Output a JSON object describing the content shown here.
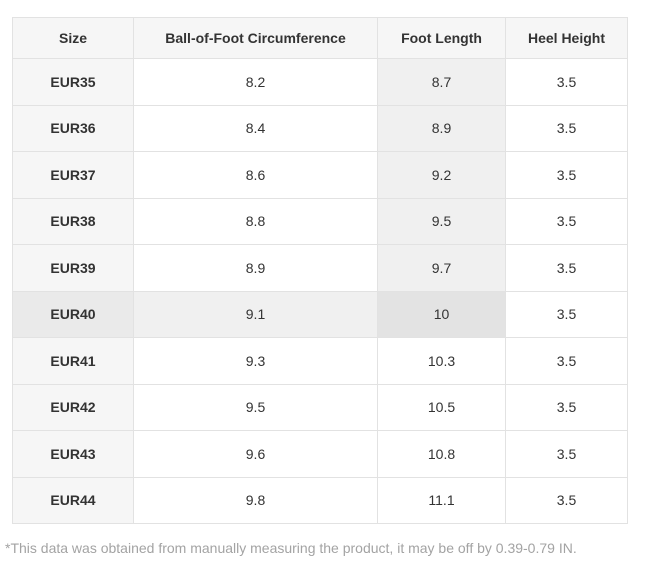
{
  "table": {
    "columns": [
      {
        "key": "size",
        "label": "Size"
      },
      {
        "key": "ball_of_foot_circumference",
        "label": "Ball-of-Foot Circumference"
      },
      {
        "key": "foot_length",
        "label": "Foot Length"
      },
      {
        "key": "heel_height",
        "label": "Heel Height"
      }
    ],
    "rows": [
      {
        "size": "EUR35",
        "ball_of_foot_circumference": "8.2",
        "foot_length": "8.7",
        "heel_height": "3.5"
      },
      {
        "size": "EUR36",
        "ball_of_foot_circumference": "8.4",
        "foot_length": "8.9",
        "heel_height": "3.5"
      },
      {
        "size": "EUR37",
        "ball_of_foot_circumference": "8.6",
        "foot_length": "9.2",
        "heel_height": "3.5"
      },
      {
        "size": "EUR38",
        "ball_of_foot_circumference": "8.8",
        "foot_length": "9.5",
        "heel_height": "3.5"
      },
      {
        "size": "EUR39",
        "ball_of_foot_circumference": "8.9",
        "foot_length": "9.7",
        "heel_height": "3.5"
      },
      {
        "size": "EUR40",
        "ball_of_foot_circumference": "9.1",
        "foot_length": "10",
        "heel_height": "3.5"
      },
      {
        "size": "EUR41",
        "ball_of_foot_circumference": "9.3",
        "foot_length": "10.3",
        "heel_height": "3.5"
      },
      {
        "size": "EUR42",
        "ball_of_foot_circumference": "9.5",
        "foot_length": "10.5",
        "heel_height": "3.5"
      },
      {
        "size": "EUR43",
        "ball_of_foot_circumference": "9.6",
        "foot_length": "10.8",
        "heel_height": "3.5"
      },
      {
        "size": "EUR44",
        "ball_of_foot_circumference": "9.8",
        "foot_length": "11.1",
        "heel_height": "3.5"
      }
    ],
    "highlight": {
      "row_index": 5,
      "col_index": 2,
      "hovered_row": "EUR40",
      "hovered_column": "Foot Length"
    }
  },
  "footnote": "*This data was obtained from manually measuring the product, it may be off by 0.39-0.79 IN.",
  "colors": {
    "header_bg": "#f6f6f6",
    "size_column_bg": "#f6f6f6",
    "crosshair_highlight_bg": "#f0f0f0",
    "size_column_highlight_bg": "#eaeaea",
    "hovered_cell_bg": "#e3e3e3",
    "border": "#e2e2e2",
    "cell_text": "#333333",
    "footnote_text": "#a3a3a3"
  }
}
